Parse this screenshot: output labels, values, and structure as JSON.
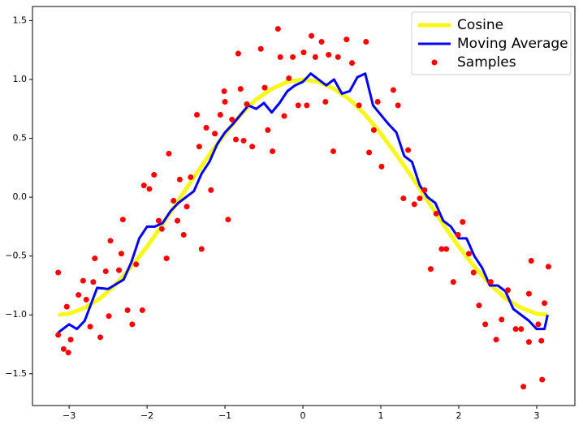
{
  "chart_data": {
    "type": "line",
    "xlim": [
      -3.47,
      3.49
    ],
    "ylim": [
      -1.77,
      1.62
    ],
    "xticks": [
      {
        "value": -3,
        "label": "−3"
      },
      {
        "value": -2,
        "label": "−2"
      },
      {
        "value": -1,
        "label": "−1"
      },
      0,
      1,
      2,
      3
    ],
    "yticks": [
      {
        "value": -1.5,
        "label": "−1.5"
      },
      {
        "value": -1.0,
        "label": "−1.0"
      },
      {
        "value": -0.5,
        "label": "−0.5"
      },
      {
        "value": 0,
        "label": "0.0"
      },
      {
        "value": 0.5,
        "label": "0.5"
      },
      {
        "value": 1.0,
        "label": "1.0"
      },
      {
        "value": 1.5,
        "label": "1.5"
      }
    ],
    "legend": "upper right",
    "series": [
      {
        "name": "Cosine",
        "type": "line",
        "color": "#f7f71a",
        "x": [
          -3.14,
          -3.0,
          -2.8,
          -2.6,
          -2.4,
          -2.2,
          -2.0,
          -1.8,
          -1.6,
          -1.4,
          -1.2,
          -1.0,
          -0.8,
          -0.6,
          -0.4,
          -0.2,
          0,
          0.2,
          0.4,
          0.6,
          0.8,
          1.0,
          1.2,
          1.4,
          1.6,
          1.8,
          2.0,
          2.2,
          2.4,
          2.6,
          2.8,
          3.0,
          3.14
        ],
        "values": [
          -1.0,
          -0.99,
          -0.94,
          -0.86,
          -0.74,
          -0.59,
          -0.42,
          -0.23,
          -0.03,
          0.17,
          0.36,
          0.54,
          0.7,
          0.83,
          0.92,
          0.98,
          1.0,
          0.98,
          0.92,
          0.83,
          0.7,
          0.54,
          0.36,
          0.17,
          -0.03,
          -0.23,
          -0.42,
          -0.59,
          -0.74,
          -0.86,
          -0.94,
          -0.99,
          -1.0
        ]
      },
      {
        "name": "Moving Average",
        "type": "line",
        "color": "#0000ff",
        "x": [
          -3.14,
          -3.0,
          -2.9,
          -2.8,
          -2.64,
          -2.5,
          -2.4,
          -2.3,
          -2.2,
          -2.1,
          -2.0,
          -1.9,
          -1.8,
          -1.7,
          -1.6,
          -1.5,
          -1.4,
          -1.3,
          -1.2,
          -1.1,
          -1.0,
          -0.9,
          -0.8,
          -0.7,
          -0.6,
          -0.5,
          -0.4,
          -0.3,
          -0.2,
          -0.1,
          0,
          0.1,
          0.2,
          0.3,
          0.4,
          0.5,
          0.6,
          0.7,
          0.8,
          0.9,
          1.0,
          1.1,
          1.2,
          1.3,
          1.4,
          1.5,
          1.6,
          1.7,
          1.8,
          1.9,
          2.0,
          2.1,
          2.2,
          2.3,
          2.4,
          2.5,
          2.6,
          2.7,
          2.8,
          2.9,
          3.0,
          3.1,
          3.14
        ],
        "values": [
          -1.15,
          -1.08,
          -1.12,
          -1.05,
          -0.77,
          -0.78,
          -0.74,
          -0.7,
          -0.55,
          -0.35,
          -0.25,
          -0.25,
          -0.22,
          -0.12,
          -0.05,
          0.0,
          0.05,
          0.2,
          0.3,
          0.45,
          0.55,
          0.62,
          0.7,
          0.78,
          0.75,
          0.8,
          0.72,
          0.8,
          0.9,
          0.95,
          0.98,
          1.05,
          1.0,
          0.95,
          1.0,
          0.88,
          0.9,
          1.02,
          1.05,
          0.78,
          0.7,
          0.62,
          0.55,
          0.35,
          0.3,
          0.1,
          0.0,
          -0.05,
          -0.2,
          -0.25,
          -0.35,
          -0.35,
          -0.5,
          -0.6,
          -0.75,
          -0.75,
          -0.8,
          -0.95,
          -1.0,
          -1.05,
          -1.12,
          -1.12,
          -1.0
        ]
      },
      {
        "name": "Samples",
        "type": "scatter",
        "color": "#ff0000",
        "x": [
          -3.14,
          -3.14,
          -3.07,
          -3.01,
          -3.03,
          -2.98,
          -2.88,
          -2.82,
          -2.78,
          -2.73,
          -2.69,
          -2.67,
          -2.6,
          -2.53,
          -2.49,
          -2.47,
          -2.36,
          -2.33,
          -2.31,
          -2.25,
          -2.19,
          -2.14,
          -2.06,
          -2.04,
          -1.97,
          -1.91,
          -1.85,
          -1.81,
          -1.75,
          -1.72,
          -1.66,
          -1.61,
          -1.58,
          -1.53,
          -1.49,
          -1.44,
          -1.36,
          -1.33,
          -1.3,
          -1.24,
          -1.18,
          -1.13,
          -1.06,
          -1.01,
          -1.0,
          -0.96,
          -0.91,
          -0.86,
          -0.83,
          -0.8,
          -0.76,
          -0.72,
          -0.65,
          -0.54,
          -0.49,
          -0.45,
          -0.39,
          -0.32,
          -0.29,
          -0.24,
          -0.18,
          -0.13,
          -0.06,
          0.01,
          0.05,
          0.11,
          0.16,
          0.24,
          0.29,
          0.33,
          0.39,
          0.45,
          0.56,
          0.63,
          0.72,
          0.81,
          0.85,
          0.91,
          0.96,
          1.01,
          1.16,
          1.22,
          1.29,
          1.35,
          1.43,
          1.5,
          1.56,
          1.64,
          1.71,
          1.78,
          1.84,
          1.93,
          1.99,
          2.05,
          2.13,
          2.19,
          2.26,
          2.34,
          2.41,
          2.48,
          2.55,
          2.63,
          2.73,
          2.8,
          2.83,
          2.9,
          2.93,
          3.02,
          3.07,
          3.1,
          3.15,
          2.9,
          3.06
        ],
        "values": [
          -0.64,
          -1.17,
          -1.29,
          -1.32,
          -0.93,
          -1.21,
          -0.83,
          -0.71,
          -0.87,
          -1.1,
          -0.72,
          -0.52,
          -1.19,
          -0.63,
          -1.01,
          -0.37,
          -0.62,
          -0.48,
          -0.19,
          -0.96,
          -1.08,
          -0.57,
          -0.96,
          0.1,
          0.07,
          0.19,
          -0.2,
          -0.27,
          -0.52,
          0.37,
          -0.03,
          -0.2,
          0.15,
          -0.32,
          -0.08,
          0.17,
          0.7,
          0.43,
          -0.44,
          0.59,
          0.06,
          0.54,
          0.7,
          0.9,
          0.81,
          -0.19,
          0.66,
          0.49,
          1.22,
          0.92,
          0.48,
          0.79,
          0.43,
          1.26,
          0.93,
          0.57,
          0.39,
          1.43,
          1.19,
          0.69,
          1.01,
          1.19,
          0.78,
          1.23,
          0.78,
          1.37,
          1.19,
          1.32,
          0.81,
          1.21,
          0.39,
          1.19,
          1.34,
          1.14,
          0.78,
          1.32,
          0.38,
          0.57,
          0.81,
          0.26,
          0.91,
          0.78,
          -0.01,
          0.4,
          -0.06,
          -0.01,
          0.06,
          -0.61,
          -0.14,
          -0.44,
          -0.44,
          -0.72,
          -0.32,
          -0.21,
          -0.48,
          -0.64,
          -0.92,
          -1.08,
          -0.72,
          -1.21,
          -1.04,
          -0.79,
          -1.12,
          -1.12,
          -1.61,
          -1.23,
          -0.54,
          -1.08,
          -1.55,
          -0.9,
          -0.59,
          -0.82,
          -1.22
        ]
      }
    ]
  }
}
